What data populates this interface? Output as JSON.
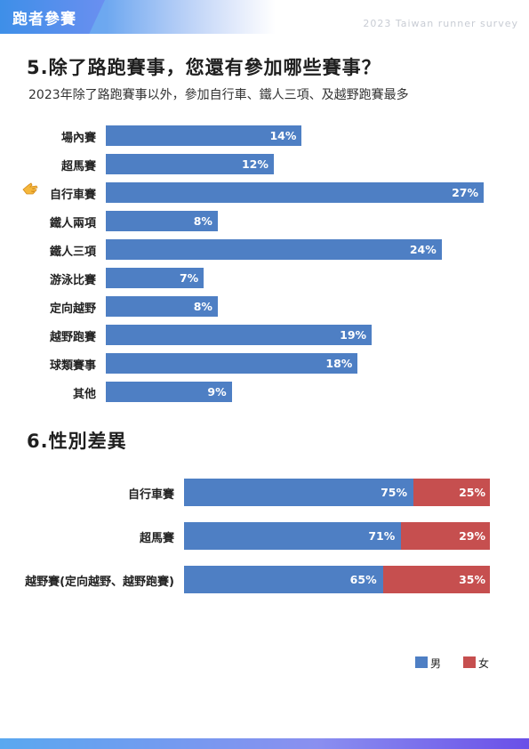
{
  "header": {
    "tab_label": "跑者參賽",
    "survey_label": "2023 Taiwan runner survey"
  },
  "section5": {
    "title": "5.除了路跑賽事，您還有參加哪些賽事？",
    "subtitle": "2023年除了路跑賽事以外，參加自行車、鐵人三項、及越野跑賽最多",
    "highlight_icon": "pointing-hand-icon"
  },
  "section6": {
    "title": "6.性別差異"
  },
  "colors": {
    "male": "#4e7fc4",
    "female": "#c64f4f",
    "bar": "#4e7fc4"
  },
  "chart_data": [
    {
      "type": "bar",
      "orientation": "horizontal",
      "title": "5.除了路跑賽事，您還有參加哪些賽事？",
      "categories": [
        "場內賽",
        "超馬賽",
        "自行車賽",
        "鐵人兩項",
        "鐵人三項",
        "游泳比賽",
        "定向越野",
        "越野跑賽",
        "球類賽事",
        "其他"
      ],
      "values": [
        14,
        12,
        27,
        8,
        24,
        7,
        8,
        19,
        18,
        9
      ],
      "value_labels": [
        "14%",
        "12%",
        "27%",
        "8%",
        "24%",
        "7%",
        "8%",
        "19%",
        "18%",
        "9%"
      ],
      "xlim": [
        0,
        28
      ],
      "highlight": "自行車賽"
    },
    {
      "type": "bar",
      "orientation": "horizontal",
      "stacked": true,
      "title": "6.性別差異",
      "categories": [
        "自行車賽",
        "超馬賽",
        "越野賽(定向越野、越野跑賽)"
      ],
      "series": [
        {
          "name": "男",
          "values": [
            75,
            71,
            65
          ],
          "labels": [
            "75%",
            "71%",
            "65%"
          ],
          "color": "#4e7fc4"
        },
        {
          "name": "女",
          "values": [
            25,
            29,
            35
          ],
          "labels": [
            "25%",
            "29%",
            "35%"
          ],
          "color": "#c64f4f"
        }
      ],
      "xlim": [
        0,
        100
      ],
      "legend": "bottom-right"
    }
  ]
}
